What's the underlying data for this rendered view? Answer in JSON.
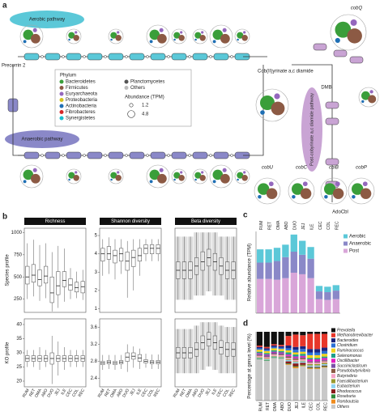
{
  "panel_a": {
    "label": "a",
    "aerobic": "Aerobic pathway",
    "anaerobic": "Anaerobic pathway",
    "start": "Precorrin 2",
    "intermediate": "Cob(II)yrinate a,c diamide",
    "post": "Post-cobyrinate a,c diamide pathway",
    "dmb": "DMB",
    "product": "AdoCbl",
    "genes": [
      "cobQ",
      "cobU",
      "cobC",
      "cbiB",
      "cobP"
    ],
    "legend": {
      "title": "Phylum",
      "items": [
        {
          "name": "Bacteroidetes",
          "color": "#3a9e3a"
        },
        {
          "name": "Firmicutes",
          "color": "#8c5a44"
        },
        {
          "name": "Euryarchaeota",
          "color": "#9467bd"
        },
        {
          "name": "Proteobacteria",
          "color": "#d4c21f"
        },
        {
          "name": "Actinobacteria",
          "color": "#1f6fb4"
        },
        {
          "name": "Fibrobacteres",
          "color": "#d62728"
        },
        {
          "name": "Synergistetes",
          "color": "#17becf"
        },
        {
          "name": "Planctomycetes",
          "color": "#555555"
        },
        {
          "name": "Others",
          "color": "#bbbbbb"
        }
      ],
      "size_title": "Abundance (TPM)",
      "sizes": [
        1.2,
        4.8
      ]
    }
  },
  "chart_data": [
    {
      "type": "box",
      "panel_label": "b",
      "title": "Richness",
      "y_label": "Species profile",
      "ylim": [
        100,
        1050
      ],
      "yticks": [
        1000,
        750,
        500,
        250
      ],
      "min": [
        250,
        280,
        230,
        260,
        110,
        150,
        220,
        250,
        260,
        240
      ],
      "q1": [
        420,
        440,
        400,
        430,
        210,
        300,
        390,
        350,
        330,
        320
      ],
      "median": [
        500,
        520,
        470,
        510,
        320,
        400,
        460,
        410,
        380,
        390
      ],
      "q3": [
        620,
        640,
        580,
        620,
        500,
        560,
        560,
        480,
        440,
        450
      ],
      "max": [
        880,
        920,
        860,
        880,
        780,
        850,
        820,
        600,
        560,
        580
      ]
    },
    {
      "type": "box",
      "title": "Shannon diversity",
      "ylim": [
        0.8,
        5.4
      ],
      "yticks": [
        5,
        4,
        3,
        2,
        1
      ],
      "min": [
        2.8,
        2.9,
        2.6,
        2.9,
        1.6,
        2.0,
        2.8,
        3.6,
        3.6,
        3.6
      ],
      "q1": [
        3.6,
        3.7,
        3.5,
        3.6,
        3.1,
        3.3,
        3.6,
        4.0,
        4.0,
        4.0
      ],
      "median": [
        4.0,
        4.0,
        3.9,
        4.0,
        3.6,
        3.8,
        3.9,
        4.3,
        4.3,
        4.3
      ],
      "q3": [
        4.3,
        4.4,
        4.2,
        4.3,
        4.1,
        4.2,
        4.3,
        4.5,
        4.5,
        4.5
      ],
      "max": [
        4.8,
        4.9,
        4.8,
        4.8,
        4.7,
        4.8,
        4.8,
        4.8,
        4.8,
        4.8
      ]
    },
    {
      "type": "box",
      "title": "Beta diversity",
      "points": true,
      "ylim": [
        0,
        1
      ],
      "min": [
        0.15,
        0.15,
        0.15,
        0.2,
        0.2,
        0.25,
        0.2,
        0.2,
        0.15,
        0.15
      ],
      "q1": [
        0.4,
        0.4,
        0.4,
        0.45,
        0.5,
        0.55,
        0.5,
        0.45,
        0.4,
        0.4
      ],
      "median": [
        0.5,
        0.5,
        0.5,
        0.55,
        0.6,
        0.65,
        0.6,
        0.55,
        0.5,
        0.5
      ],
      "q3": [
        0.6,
        0.6,
        0.6,
        0.65,
        0.72,
        0.75,
        0.7,
        0.65,
        0.6,
        0.6
      ],
      "max": [
        0.9,
        0.9,
        0.9,
        0.95,
        0.95,
        0.95,
        0.95,
        0.9,
        0.9,
        0.9
      ]
    },
    {
      "type": "box",
      "y_label": "KO profile",
      "ylim": [
        18,
        42
      ],
      "yticks": [
        40,
        35,
        30,
        25,
        20
      ],
      "categories": [
        "RUM",
        "RET",
        "OMA",
        "ABO",
        "DUO",
        "JEJ",
        "ILE",
        "CEC",
        "COL",
        "REC"
      ],
      "min": [
        25,
        25,
        24,
        25,
        19,
        22,
        24,
        25,
        25,
        25
      ],
      "q1": [
        27,
        27,
        27,
        27,
        26,
        27,
        27,
        27,
        27,
        27
      ],
      "median": [
        28,
        28,
        28,
        28,
        28,
        28,
        28,
        28,
        28,
        28
      ],
      "q3": [
        29,
        29,
        29,
        29,
        30,
        29,
        29,
        29,
        29,
        29
      ],
      "max": [
        31,
        31,
        32,
        31,
        36,
        34,
        32,
        31,
        31,
        31
      ]
    },
    {
      "type": "box",
      "ylim": [
        2.2,
        3.8
      ],
      "yticks": [
        3.6,
        3.2,
        2.8,
        2.4
      ],
      "categories": [
        "RUM",
        "RET",
        "OMA",
        "ABO",
        "DUO",
        "JEJ",
        "ILE",
        "CEC",
        "COL",
        "REC"
      ],
      "min": [
        2.6,
        2.62,
        2.6,
        2.62,
        2.55,
        2.65,
        2.62,
        2.65,
        2.62,
        2.62
      ],
      "q1": [
        2.72,
        2.74,
        2.72,
        2.74,
        2.8,
        2.85,
        2.8,
        2.76,
        2.74,
        2.74
      ],
      "median": [
        2.76,
        2.78,
        2.76,
        2.78,
        2.9,
        2.92,
        2.88,
        2.8,
        2.78,
        2.78
      ],
      "q3": [
        2.8,
        2.82,
        2.8,
        2.82,
        3.0,
        3.0,
        2.96,
        2.84,
        2.82,
        2.82
      ],
      "max": [
        2.95,
        2.95,
        2.95,
        2.95,
        3.2,
        3.15,
        3.1,
        2.98,
        2.96,
        2.96
      ]
    },
    {
      "type": "box",
      "points": true,
      "ylim": [
        0,
        1
      ],
      "categories": [
        "RUM",
        "RET",
        "OMA",
        "ABO",
        "DUO",
        "JEJ",
        "ILE",
        "CEC",
        "COL",
        "REC"
      ],
      "min": [
        0.2,
        0.2,
        0.2,
        0.2,
        0.25,
        0.3,
        0.25,
        0.2,
        0.2,
        0.2
      ],
      "q1": [
        0.42,
        0.42,
        0.42,
        0.45,
        0.55,
        0.6,
        0.55,
        0.48,
        0.45,
        0.45
      ],
      "median": [
        0.5,
        0.5,
        0.5,
        0.55,
        0.65,
        0.7,
        0.65,
        0.58,
        0.55,
        0.55
      ],
      "q3": [
        0.58,
        0.58,
        0.58,
        0.65,
        0.75,
        0.8,
        0.75,
        0.68,
        0.65,
        0.65
      ],
      "max": [
        0.85,
        0.85,
        0.85,
        0.9,
        0.95,
        0.95,
        0.95,
        0.9,
        0.88,
        0.88
      ]
    },
    {
      "type": "stacked_bar",
      "panel_label": "c",
      "y_label": "Relative abundance (TPM)",
      "ylim": [
        0,
        105
      ],
      "categories": [
        "RUM",
        "RET",
        "OMA",
        "ABO",
        "DUO",
        "JEJ",
        "ILE",
        "CEC",
        "COL",
        "REC"
      ],
      "series": [
        {
          "name": "Post",
          "color": "#d9a6d9",
          "values": [
            44,
            44,
            43,
            45,
            52,
            50,
            45,
            18,
            17,
            18
          ]
        },
        {
          "name": "Anaerobic",
          "color": "#8a88c8",
          "values": [
            21,
            21,
            24,
            27,
            27,
            25,
            25,
            10,
            10,
            11
          ]
        },
        {
          "name": "Aerobic",
          "color": "#5bc8d8",
          "values": [
            17,
            17,
            17,
            16,
            22,
            18,
            15,
            7,
            7,
            7
          ]
        }
      ],
      "legend_order": [
        2,
        1,
        0
      ]
    },
    {
      "type": "stacked_bar",
      "panel_label": "d",
      "y_label": "Percentage at genus level (%)",
      "ylim": [
        0,
        100
      ],
      "categories": [
        "RUM",
        "RET",
        "OMA",
        "ABO",
        "DUO",
        "JEJ",
        "ILE",
        "CEC",
        "COL",
        "REC"
      ],
      "series": [
        {
          "name": "Others",
          "color": "#c8c8c8",
          "values": [
            60,
            58,
            62,
            61,
            52,
            47,
            50,
            46,
            46,
            48
          ]
        },
        {
          "name": "Romboutsia",
          "color": "#f08c1e",
          "values": [
            0,
            0,
            0,
            0,
            1,
            2,
            1,
            1,
            1,
            1
          ]
        },
        {
          "name": "Roseburia",
          "color": "#2e8b3a",
          "values": [
            1,
            1,
            1,
            1,
            1,
            1,
            1,
            1,
            1,
            1
          ]
        },
        {
          "name": "Rhodococcus",
          "color": "#8b1a1a",
          "values": [
            0,
            0,
            0,
            0,
            3,
            4,
            3,
            1,
            1,
            1
          ]
        },
        {
          "name": "Eubacterium",
          "color": "#8fd3f0",
          "values": [
            1,
            1,
            1,
            1,
            2,
            2,
            2,
            2,
            2,
            2
          ]
        },
        {
          "name": "Faecalibacterium",
          "color": "#9a9a2e",
          "values": [
            1,
            1,
            1,
            1,
            1,
            1,
            1,
            2,
            2,
            2
          ]
        },
        {
          "name": "Butyrivibrio",
          "color": "#f5a3c7",
          "values": [
            2,
            2,
            2,
            2,
            2,
            2,
            2,
            2,
            2,
            2
          ]
        },
        {
          "name": "Pseudobutyrivibrio",
          "color": "#8c5a44",
          "values": [
            1,
            1,
            1,
            1,
            2,
            2,
            2,
            1,
            1,
            1
          ]
        },
        {
          "name": "Succiniclasticum",
          "color": "#7b4fa8",
          "values": [
            2,
            2,
            2,
            2,
            1,
            1,
            1,
            1,
            1,
            1
          ]
        },
        {
          "name": "Oscillibacter",
          "color": "#e21fbf",
          "values": [
            1,
            1,
            1,
            1,
            2,
            2,
            2,
            3,
            3,
            3
          ]
        },
        {
          "name": "Selenomonas",
          "color": "#1f9e89",
          "values": [
            2,
            2,
            2,
            2,
            3,
            3,
            3,
            2,
            2,
            2
          ]
        },
        {
          "name": "Ruminococcus",
          "color": "#f2d21b",
          "values": [
            3,
            3,
            3,
            3,
            3,
            3,
            3,
            4,
            4,
            4
          ]
        },
        {
          "name": "Clostridium",
          "color": "#2a6fd6",
          "values": [
            2,
            2,
            2,
            2,
            3,
            4,
            4,
            4,
            4,
            4
          ]
        },
        {
          "name": "Bacteroides",
          "color": "#1a237e",
          "values": [
            2,
            2,
            2,
            2,
            4,
            4,
            4,
            5,
            5,
            5
          ]
        },
        {
          "name": "Methanobrevibacter",
          "color": "#e8362a",
          "values": [
            2,
            2,
            2,
            2,
            14,
            18,
            16,
            22,
            22,
            20
          ]
        },
        {
          "name": "Prevotella",
          "color": "#111111",
          "values": [
            20,
            22,
            18,
            19,
            6,
            4,
            5,
            3,
            3,
            3
          ]
        }
      ],
      "legend_order": [
        15,
        14,
        13,
        12,
        11,
        10,
        9,
        8,
        7,
        6,
        5,
        4,
        3,
        2,
        1,
        0
      ]
    }
  ]
}
